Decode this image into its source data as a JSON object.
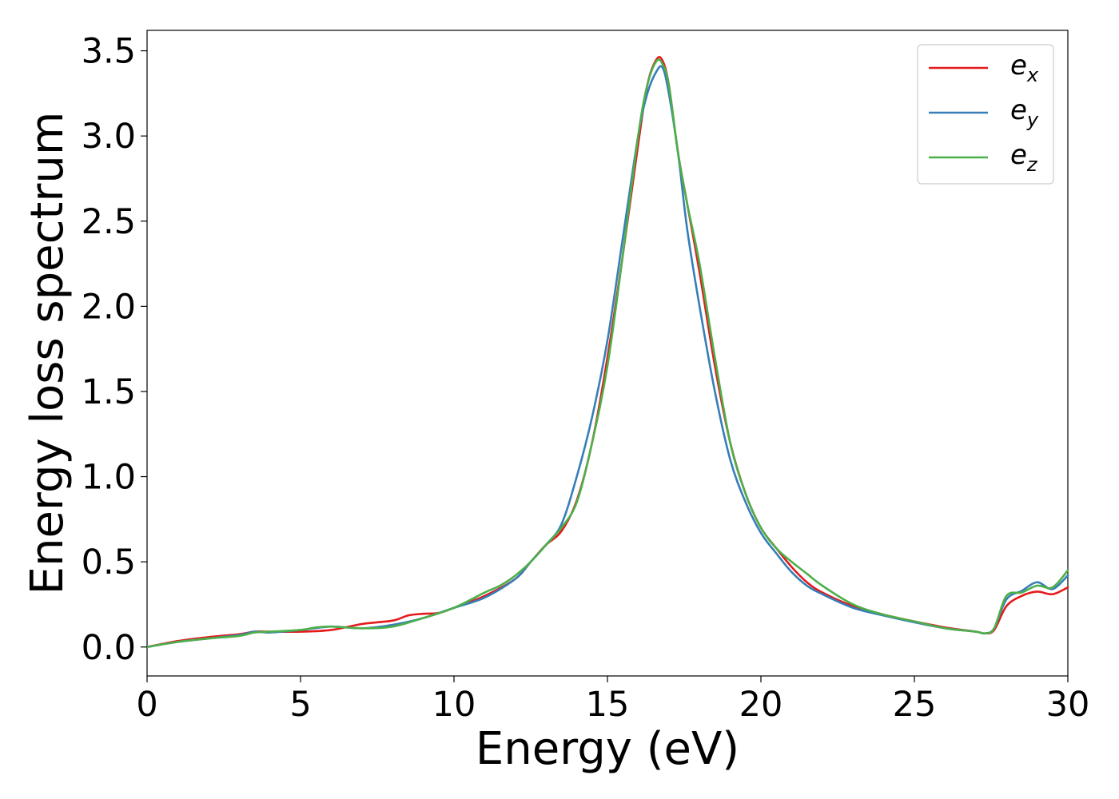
{
  "chart_data": {
    "type": "line",
    "title": "",
    "xlabel": "Energy (eV)",
    "ylabel": "Energy loss spectrum",
    "xlim": [
      0,
      30
    ],
    "ylim": [
      -0.17,
      3.62
    ],
    "xticks": [
      0,
      5,
      10,
      15,
      20,
      25,
      30
    ],
    "yticks": [
      0.0,
      0.5,
      1.0,
      1.5,
      2.0,
      2.5,
      3.0,
      3.5
    ],
    "xtick_labels": [
      "0",
      "5",
      "10",
      "15",
      "20",
      "25",
      "30"
    ],
    "ytick_labels": [
      "0.0",
      "0.5",
      "1.0",
      "1.5",
      "2.0",
      "2.5",
      "3.0",
      "3.5"
    ],
    "grid": false,
    "legend_position": "top-right",
    "series": [
      {
        "name": "e_x",
        "legend_base": "e",
        "legend_sub": "x",
        "color": "#e41a1c",
        "x": [
          0,
          1,
          2,
          3,
          3.5,
          4,
          5,
          6,
          7,
          8,
          8.5,
          9,
          9.5,
          10,
          11,
          12,
          12.5,
          13,
          13.5,
          14,
          14.5,
          15,
          15.5,
          16,
          16.3,
          16.6,
          16.8,
          17,
          17.3,
          17.6,
          18,
          18.5,
          19,
          19.5,
          20,
          20.5,
          21,
          21.5,
          22,
          23,
          24,
          25,
          26,
          27,
          27.3,
          27.6,
          28,
          28.5,
          29,
          29.5,
          30
        ],
        "y": [
          0.0,
          0.035,
          0.058,
          0.075,
          0.09,
          0.09,
          0.09,
          0.1,
          0.135,
          0.155,
          0.185,
          0.195,
          0.2,
          0.23,
          0.3,
          0.4,
          0.5,
          0.6,
          0.68,
          0.86,
          1.2,
          1.7,
          2.3,
          2.95,
          3.3,
          3.45,
          3.44,
          3.3,
          2.9,
          2.6,
          2.2,
          1.65,
          1.2,
          0.9,
          0.7,
          0.58,
          0.47,
          0.38,
          0.32,
          0.24,
          0.19,
          0.15,
          0.115,
          0.09,
          0.08,
          0.1,
          0.24,
          0.3,
          0.325,
          0.31,
          0.35
        ]
      },
      {
        "name": "e_y",
        "legend_base": "e",
        "legend_sub": "y",
        "color": "#377eb8",
        "x": [
          0,
          1,
          2,
          3,
          3.5,
          4,
          5,
          6,
          7,
          8,
          9,
          10,
          11,
          12,
          12.5,
          13,
          13.5,
          14,
          14.5,
          15,
          15.5,
          16,
          16.3,
          16.6,
          16.8,
          17,
          17.3,
          17.6,
          18,
          18.5,
          19,
          19.5,
          20,
          20.5,
          21,
          21.5,
          22,
          23,
          24,
          25,
          26,
          27,
          27.3,
          27.6,
          28,
          28.5,
          29,
          29.5,
          30
        ],
        "y": [
          0.0,
          0.03,
          0.05,
          0.07,
          0.09,
          0.085,
          0.1,
          0.12,
          0.11,
          0.13,
          0.17,
          0.23,
          0.29,
          0.4,
          0.5,
          0.6,
          0.72,
          1.0,
          1.35,
          1.8,
          2.4,
          3.0,
          3.25,
          3.38,
          3.4,
          3.25,
          2.9,
          2.45,
          2.0,
          1.5,
          1.1,
          0.85,
          0.67,
          0.55,
          0.44,
          0.36,
          0.31,
          0.23,
          0.185,
          0.145,
          0.11,
          0.09,
          0.08,
          0.11,
          0.28,
          0.33,
          0.38,
          0.34,
          0.42
        ]
      },
      {
        "name": "e_z",
        "legend_base": "e",
        "legend_sub": "z",
        "color": "#4daf4a",
        "x": [
          0,
          1,
          2,
          3,
          3.5,
          4,
          5,
          5.5,
          6,
          7,
          8,
          9,
          10,
          11,
          11.5,
          12,
          12.5,
          13,
          13.5,
          14,
          14.5,
          15,
          15.5,
          16,
          16.3,
          16.6,
          16.8,
          17,
          17.3,
          17.6,
          18,
          18.5,
          19,
          19.5,
          20,
          20.5,
          21,
          21.5,
          22,
          23,
          24,
          25,
          26,
          27,
          27.3,
          27.6,
          28,
          28.5,
          29,
          29.5,
          30
        ],
        "y": [
          0.0,
          0.03,
          0.05,
          0.065,
          0.085,
          0.09,
          0.1,
          0.115,
          0.12,
          0.11,
          0.12,
          0.17,
          0.23,
          0.32,
          0.36,
          0.42,
          0.5,
          0.6,
          0.7,
          0.85,
          1.2,
          1.65,
          2.3,
          3.0,
          3.3,
          3.44,
          3.42,
          3.3,
          2.9,
          2.6,
          2.25,
          1.7,
          1.2,
          0.9,
          0.7,
          0.58,
          0.5,
          0.43,
          0.36,
          0.25,
          0.19,
          0.15,
          0.11,
          0.09,
          0.08,
          0.11,
          0.3,
          0.32,
          0.36,
          0.35,
          0.45
        ]
      }
    ]
  }
}
